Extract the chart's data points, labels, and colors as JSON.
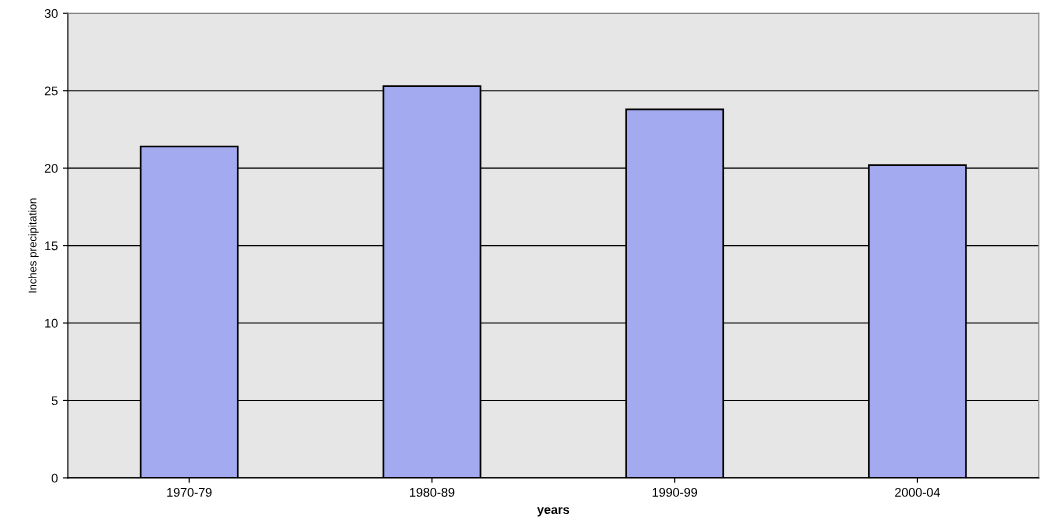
{
  "chart_data": {
    "type": "bar",
    "xlabel": "years",
    "ylabel": "Inches precipitation",
    "categories": [
      "1970-79",
      "1980-89",
      "1990-99",
      "2000-04"
    ],
    "values": [
      21.4,
      25.3,
      23.8,
      20.2
    ],
    "color": "#a3aaf0",
    "ylim": [
      0,
      30
    ],
    "yticks": [
      0,
      5,
      10,
      15,
      20,
      25,
      30
    ],
    "grid": "y"
  }
}
